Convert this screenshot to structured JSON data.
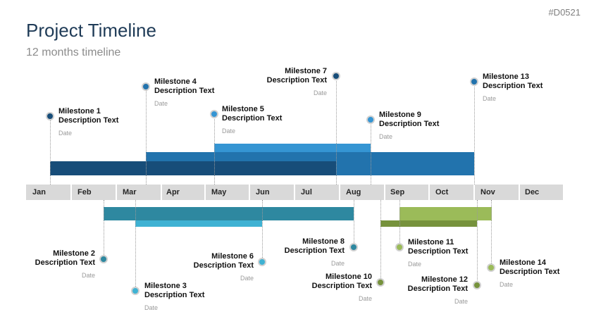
{
  "header": {
    "slide_id": "#D0521",
    "title": "Project Timeline",
    "subtitle": "12 months timeline"
  },
  "months": [
    "Jan",
    "Feb",
    "Mar",
    "Apr",
    "May",
    "Jun",
    "Jul",
    "Aug",
    "Sep",
    "Oct",
    "Nov",
    "Dec"
  ],
  "colors": {
    "dark_blue": "#174d79",
    "mid_blue": "#2273ad",
    "light_blue": "#3595d3",
    "teal": "#2e88a0",
    "light_teal": "#3fb2d3",
    "green": "#9bbb59",
    "dark_green": "#76923c",
    "axis": "#d9d9d9"
  },
  "milestones": [
    {
      "label": "Milestone 1",
      "desc": "Description Text",
      "date": "Date",
      "color": "#174d79"
    },
    {
      "label": "Milestone 2",
      "desc": "Description Text",
      "date": "Date",
      "color": "#2e88a0"
    },
    {
      "label": "Milestone 3",
      "desc": "Description Text",
      "date": "Date",
      "color": "#3fb2d3"
    },
    {
      "label": "Milestone 4",
      "desc": "Description Text",
      "date": "Date",
      "color": "#2273ad"
    },
    {
      "label": "Milestone 5",
      "desc": "Description Text",
      "date": "Date",
      "color": "#3595d3"
    },
    {
      "label": "Milestone 6",
      "desc": "Description Text",
      "date": "Date",
      "color": "#3fb2d3"
    },
    {
      "label": "Milestone 7",
      "desc": "Description Text",
      "date": "Date",
      "color": "#174d79"
    },
    {
      "label": "Milestone 8",
      "desc": "Description Text",
      "date": "Date",
      "color": "#2e88a0"
    },
    {
      "label": "Milestone 9",
      "desc": "Description Text",
      "date": "Date",
      "color": "#3595d3"
    },
    {
      "label": "Milestone 10",
      "desc": "Description Text",
      "date": "Date",
      "color": "#76923c"
    },
    {
      "label": "Milestone 11",
      "desc": "Description Text",
      "date": "Date",
      "color": "#9bbb59"
    },
    {
      "label": "Milestone 12",
      "desc": "Description Text",
      "date": "Date",
      "color": "#76923c"
    },
    {
      "label": "Milestone 13",
      "desc": "Description Text",
      "date": "Date",
      "color": "#2273ad"
    },
    {
      "label": "Milestone 14",
      "desc": "Description Text",
      "date": "Date",
      "color": "#9bbb59"
    }
  ]
}
